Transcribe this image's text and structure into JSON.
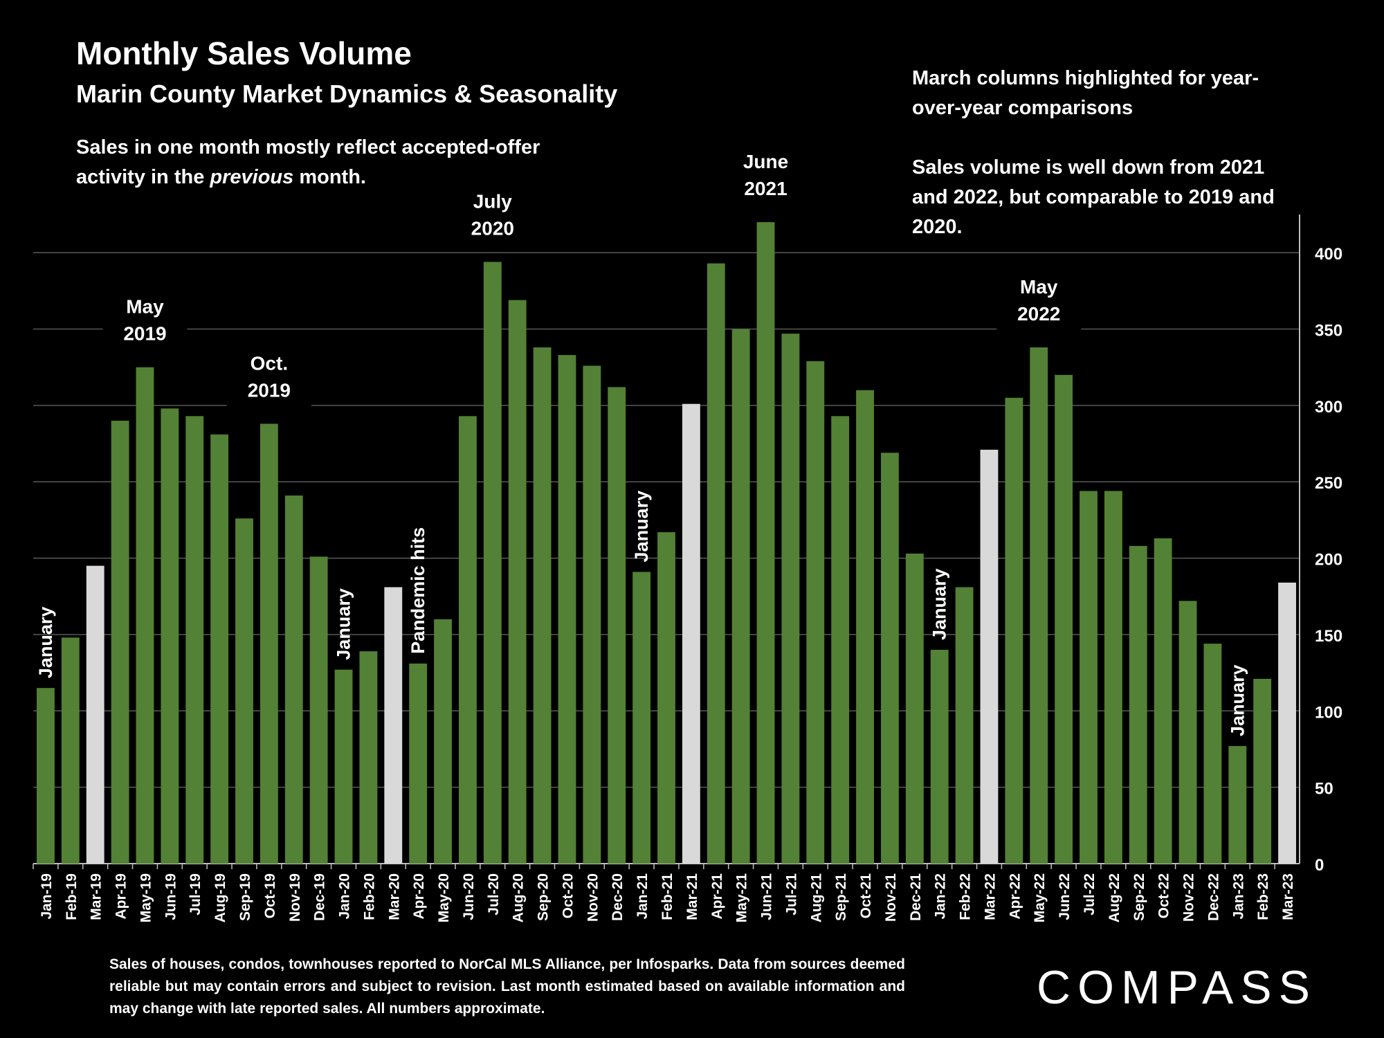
{
  "title": "Monthly Sales Volume",
  "subtitle": "Marin County Market Dynamics & Seasonality",
  "note": {
    "before": "Sales in one month mostly reflect accepted-offer activity in the ",
    "emphasis": "previous",
    "after": " month."
  },
  "side_notes": [
    "March columns highlighted for year-over-year comparisons",
    "Sales volume is well down from 2021 and 2022, but comparable to 2019 and 2020."
  ],
  "footnote": "Sales of houses, condos, townhouses reported to NorCal MLS Alliance, per Infosparks. Data from sources deemed reliable but may contain errors and subject to revision. Last month estimated based on available information and may change with late reported sales. All numbers approximate.",
  "logo_text": "COMPASS",
  "colors": {
    "background": "#000000",
    "bar": "#538135",
    "highlight": "#d9d9d9",
    "grid": "#595959",
    "text": "#ffffff"
  },
  "chart_data": {
    "type": "bar",
    "categories": [
      "Jan-19",
      "Feb-19",
      "Mar-19",
      "Apr-19",
      "May-19",
      "Jun-19",
      "Jul-19",
      "Aug-19",
      "Sep-19",
      "Oct-19",
      "Nov-19",
      "Dec-19",
      "Jan-20",
      "Feb-20",
      "Mar-20",
      "Apr-20",
      "May-20",
      "Jun-20",
      "Jul-20",
      "Aug-20",
      "Sep-20",
      "Oct-20",
      "Nov-20",
      "Dec-20",
      "Jan-21",
      "Feb-21",
      "Mar-21",
      "Apr-21",
      "May-21",
      "Jun-21",
      "Jul-21",
      "Aug-21",
      "Sep-21",
      "Oct-21",
      "Nov-21",
      "Dec-21",
      "Jan-22",
      "Feb-22",
      "Mar-22",
      "Apr-22",
      "May-22",
      "Jun-22",
      "Jul-22",
      "Aug-22",
      "Sep-22",
      "Oct-22",
      "Nov-22",
      "Dec-22",
      "Jan-23",
      "Feb-23",
      "Mar-23"
    ],
    "values": [
      115,
      148,
      195,
      290,
      325,
      298,
      293,
      281,
      226,
      288,
      241,
      201,
      127,
      139,
      181,
      131,
      160,
      293,
      394,
      369,
      338,
      333,
      326,
      312,
      191,
      217,
      301,
      393,
      350,
      420,
      347,
      329,
      293,
      310,
      269,
      203,
      140,
      181,
      271,
      305,
      338,
      320,
      244,
      244,
      208,
      213,
      172,
      144,
      77,
      121,
      184
    ],
    "highlighted": [
      "Mar-19",
      "Mar-20",
      "Mar-21",
      "Mar-22",
      "Mar-23"
    ],
    "ylim": [
      0,
      425
    ],
    "yticks": [
      0,
      50,
      100,
      150,
      200,
      250,
      300,
      350,
      400
    ],
    "y_axis_side": "right",
    "grid": true,
    "xlabel": "",
    "ylabel": "",
    "annotations": [
      {
        "text": "January",
        "category": "Jan-19",
        "rotated": true
      },
      {
        "text": "May 2019",
        "category": "May-19",
        "rotated": false
      },
      {
        "text": "Oct. 2019",
        "category": "Oct-19",
        "rotated": false
      },
      {
        "text": "January",
        "category": "Jan-20",
        "rotated": true
      },
      {
        "text": "Pandemic hits",
        "category": "Apr-20",
        "rotated": true
      },
      {
        "text": "July 2020",
        "category": "Jul-20",
        "rotated": false
      },
      {
        "text": "January",
        "category": "Jan-21",
        "rotated": true
      },
      {
        "text": "June 2021",
        "category": "Jun-21",
        "rotated": false
      },
      {
        "text": "January",
        "category": "Jan-22",
        "rotated": true
      },
      {
        "text": "May 2022",
        "category": "May-22",
        "rotated": false
      },
      {
        "text": "January",
        "category": "Jan-23",
        "rotated": true
      }
    ]
  }
}
